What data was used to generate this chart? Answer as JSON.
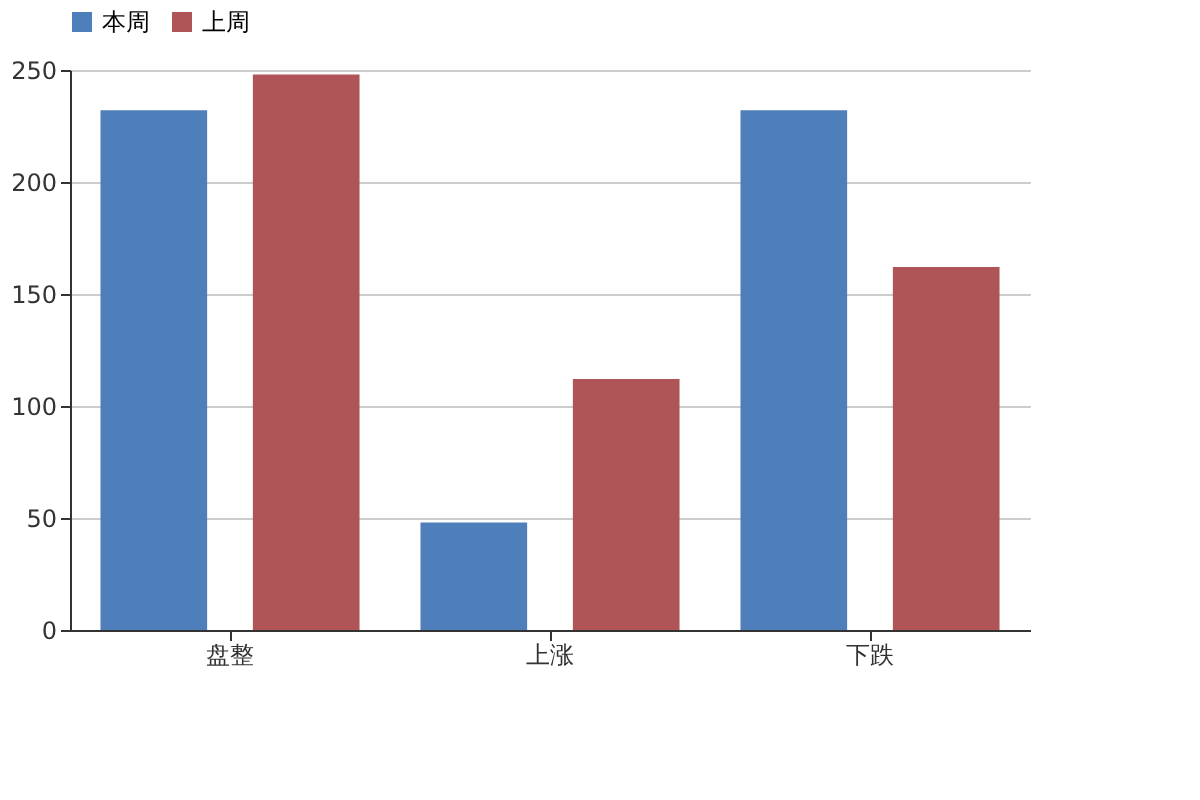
{
  "chart_data": {
    "type": "bar",
    "categories": [
      "盘整",
      "上涨",
      "下跌"
    ],
    "series": [
      {
        "name": "本周",
        "color": "#4e7fbb",
        "values": [
          232,
          48,
          232
        ]
      },
      {
        "name": "上周",
        "color": "#af5457",
        "values": [
          248,
          112,
          162
        ]
      }
    ],
    "ylim": [
      0,
      250
    ],
    "yticks": [
      0,
      50,
      100,
      150,
      200,
      250
    ],
    "grid": "y",
    "legend": "top"
  }
}
